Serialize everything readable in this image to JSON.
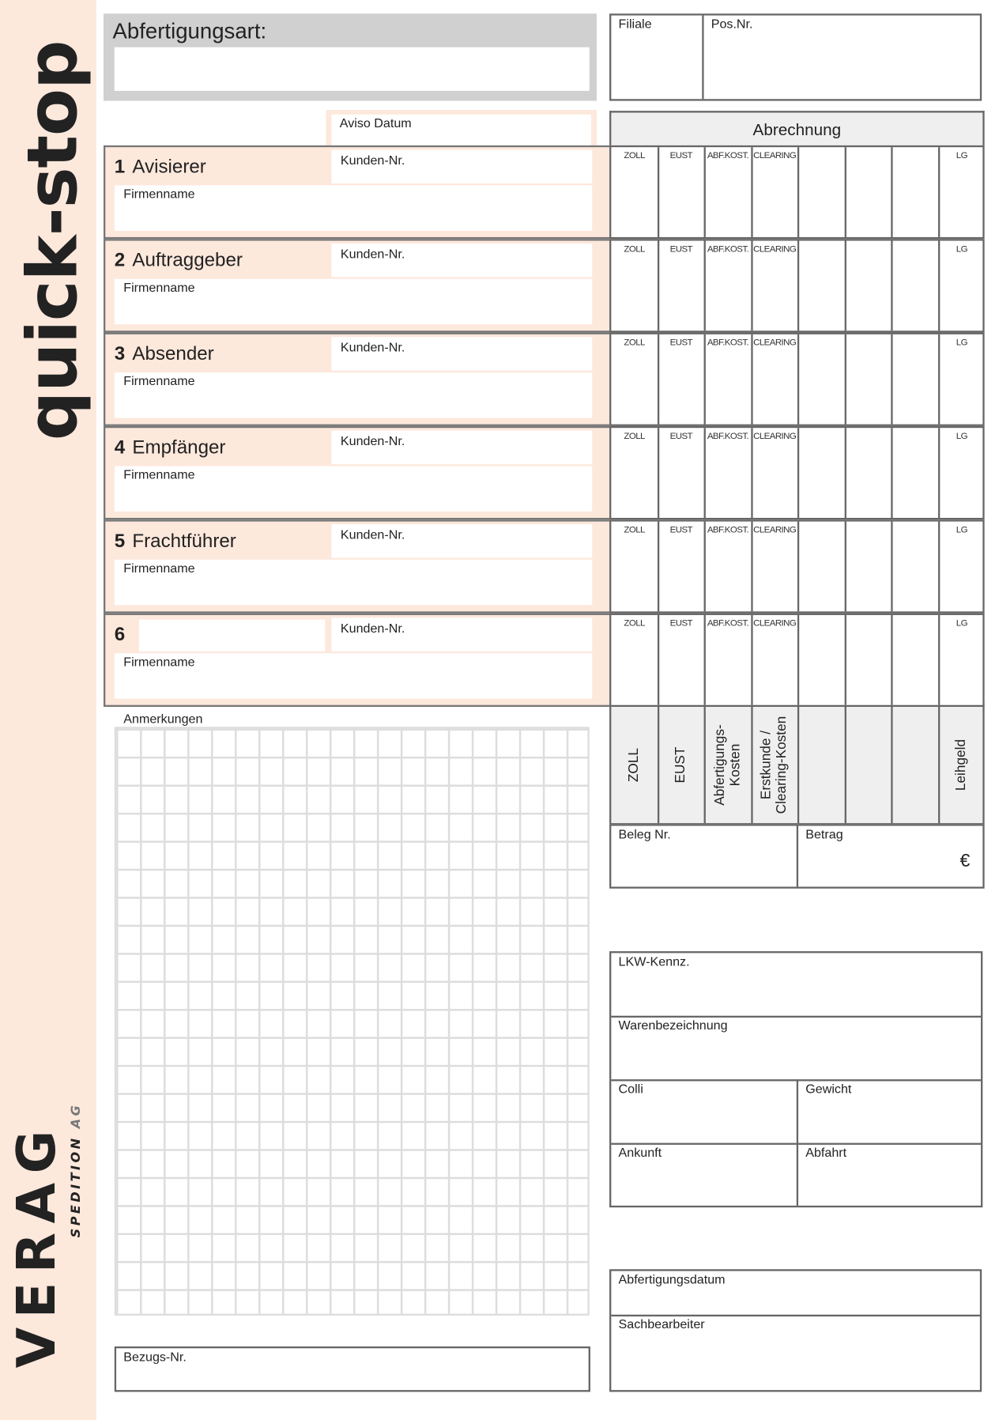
{
  "sidebar": {
    "product": "quick-stop",
    "logo": "VERAG",
    "logo_sub": "SPEDITION",
    "logo_ag": "AG",
    "color": "#fde8dc"
  },
  "header": {
    "abfertigungsart_label": "Abfertigungsart:",
    "filiale_label": "Filiale",
    "posnr_label": "Pos.Nr.",
    "aviso_label": "Aviso Datum",
    "abrechnung_label": "Abrechnung"
  },
  "sections": [
    {
      "num": "1",
      "title": "Avisierer",
      "kunden": "Kunden-Nr.",
      "firma": "Firmenname"
    },
    {
      "num": "2",
      "title": "Auftraggeber",
      "kunden": "Kunden-Nr.",
      "firma": "Firmenname"
    },
    {
      "num": "3",
      "title": "Absender",
      "kunden": "Kunden-Nr.",
      "firma": "Firmenname"
    },
    {
      "num": "4",
      "title": "Empfänger",
      "kunden": "Kunden-Nr.",
      "firma": "Firmenname"
    },
    {
      "num": "5",
      "title": "Frachtführer",
      "kunden": "Kunden-Nr.",
      "firma": "Firmenname"
    },
    {
      "num": "6",
      "title": "",
      "kunden": "Kunden-Nr.",
      "firma": "Firmenname"
    }
  ],
  "billing_columns": [
    "ZOLL",
    "EUST",
    "ABF.KOST.",
    "CLEARING",
    "",
    "",
    "",
    "LG"
  ],
  "sum_columns": [
    "ZOLL",
    "EUST",
    "Abfertigungs-\nKosten",
    "Erstkunde /\nClearing-Kosten",
    "",
    "",
    "",
    "Leihgeld"
  ],
  "beleg_label": "Beleg Nr.",
  "betrag_label": "Betrag",
  "currency": "€",
  "anmerkungen_label": "Anmerkungen",
  "bezugs_label": "Bezugs-Nr.",
  "transport": {
    "lkw": "LKW-Kennz.",
    "waren": "Warenbezeichnung",
    "colli": "Colli",
    "gewicht": "Gewicht",
    "ankunft": "Ankunft",
    "abfahrt": "Abfahrt"
  },
  "footer": {
    "datum": "Abfertigungsdatum",
    "sachbearbeiter": "Sachbearbeiter"
  }
}
